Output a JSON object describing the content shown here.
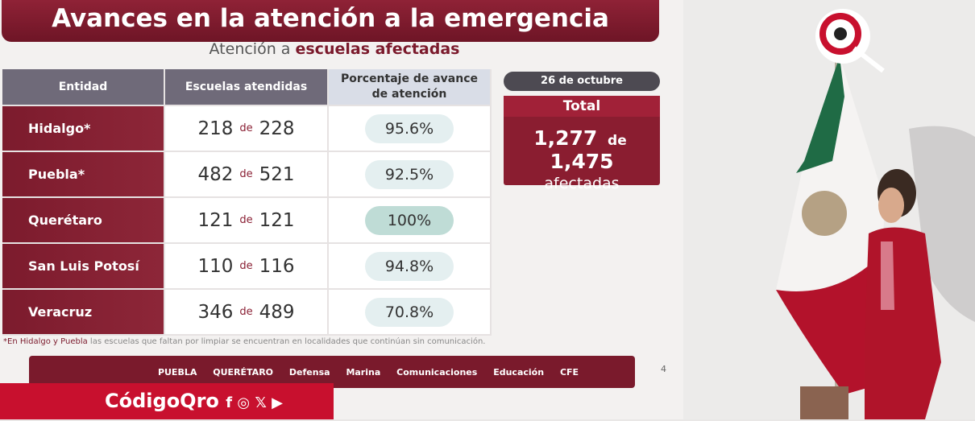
{
  "header": {
    "title": "Avances en la atención a la emergencia",
    "subtitle": {
      "text": "Atención a",
      "bold": "escuelas afectadas"
    }
  },
  "table": {
    "columns": [
      "Entidad",
      "Escuelas atendidas",
      "Porcentaje de avance de atención"
    ],
    "connector": "de",
    "rows": [
      {
        "entity": "Hidalgo*",
        "attended": 218,
        "total": 228,
        "percent": "95.6%"
      },
      {
        "entity": "Puebla*",
        "attended": 482,
        "total": 521,
        "percent": "92.5%"
      },
      {
        "entity": "Querétaro",
        "attended": 121,
        "total": 121,
        "percent": "100%"
      },
      {
        "entity": "San Luis Potosí",
        "attended": 110,
        "total": 116,
        "percent": "94.8%"
      },
      {
        "entity": "Veracruz",
        "attended": 346,
        "total": 489,
        "percent": "70.8%"
      }
    ]
  },
  "summary": {
    "date": "26 de octubre",
    "label": "Total",
    "attended": "1,277",
    "connector": "de",
    "total": "1,475",
    "caption": "afectadas"
  },
  "footnote": {
    "bold": "*En Hidalgo y Puebla",
    "text": "las escuelas que faltan por limpiar se encuentran en localidades que continúan sin comunicación."
  },
  "logos": [
    "PUEBLA",
    "QUERÉTARO",
    "Defensa",
    "Marina",
    "Comunicaciones",
    "Educación",
    "CFE"
  ],
  "page_number": "4",
  "brand": "CódigoQro"
}
